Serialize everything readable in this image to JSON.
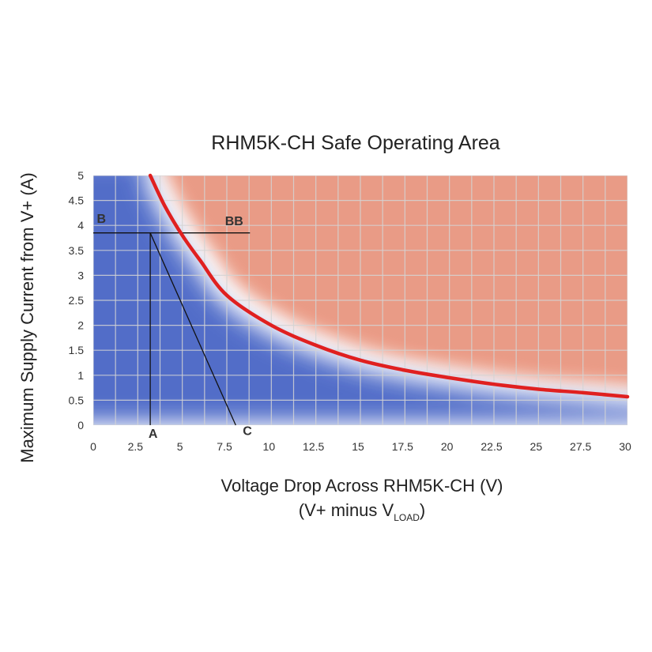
{
  "chart_data": {
    "type": "area",
    "title": "RHM5K-CH Safe Operating Area",
    "xlabel_line1": "Voltage Drop Across RHM5K-CH (V)",
    "xlabel_line2_prefix": "(V+ minus V",
    "xlabel_line2_subscript": "LOAD",
    "xlabel_line2_suffix": ")",
    "ylabel": "Maximum Supply Current from V+ (A)",
    "xlim": [
      0,
      30
    ],
    "ylim": [
      0,
      5
    ],
    "grid": true,
    "x_ticks": [
      0,
      2.5,
      5,
      7.5,
      10,
      12.5,
      15,
      17.5,
      20,
      22.5,
      25,
      27.5,
      30
    ],
    "x_tick_labels": [
      "0",
      "2.5",
      "5",
      "7.5",
      "10",
      "12.5",
      "15",
      "17.5",
      "20",
      "22.5",
      "25",
      "27.5",
      "30"
    ],
    "y_ticks": [
      0,
      0.5,
      1,
      1.5,
      2,
      2.5,
      3,
      3.5,
      4,
      4.5,
      5
    ],
    "y_tick_labels": [
      "0",
      "0.5",
      "1",
      "1.5",
      "2",
      "2.5",
      "3",
      "3.5",
      "4",
      "4.5",
      "5"
    ],
    "series": [
      {
        "x": [
          3.2,
          4,
          5,
          6,
          7.5,
          10,
          12.5,
          15,
          17.5,
          20,
          22.5,
          25,
          27.5,
          30
        ],
        "y": [
          5,
          4.4,
          3.8,
          3.3,
          2.6,
          2.0,
          1.6,
          1.3,
          1.1,
          0.95,
          0.82,
          0.72,
          0.65,
          0.57
        ],
        "color": "#e02020"
      }
    ],
    "regions": {
      "safe_color": "#4a66c6",
      "unsafe_color": "#e8937c"
    },
    "annotations": [
      {
        "label": "B",
        "x": 0.2,
        "y": 4.05
      },
      {
        "label": "BB",
        "x": 7.4,
        "y": 4.0
      },
      {
        "label": "A",
        "x": 3.1,
        "y": -0.25
      },
      {
        "label": "C",
        "x": 8.4,
        "y": -0.2
      }
    ],
    "construction_lines": [
      {
        "from": [
          0,
          3.85
        ],
        "to": [
          8.8,
          3.85
        ]
      },
      {
        "from": [
          3.2,
          3.85
        ],
        "to": [
          3.2,
          0
        ]
      },
      {
        "from": [
          3.2,
          3.85
        ],
        "to": [
          8.0,
          0
        ]
      }
    ]
  }
}
